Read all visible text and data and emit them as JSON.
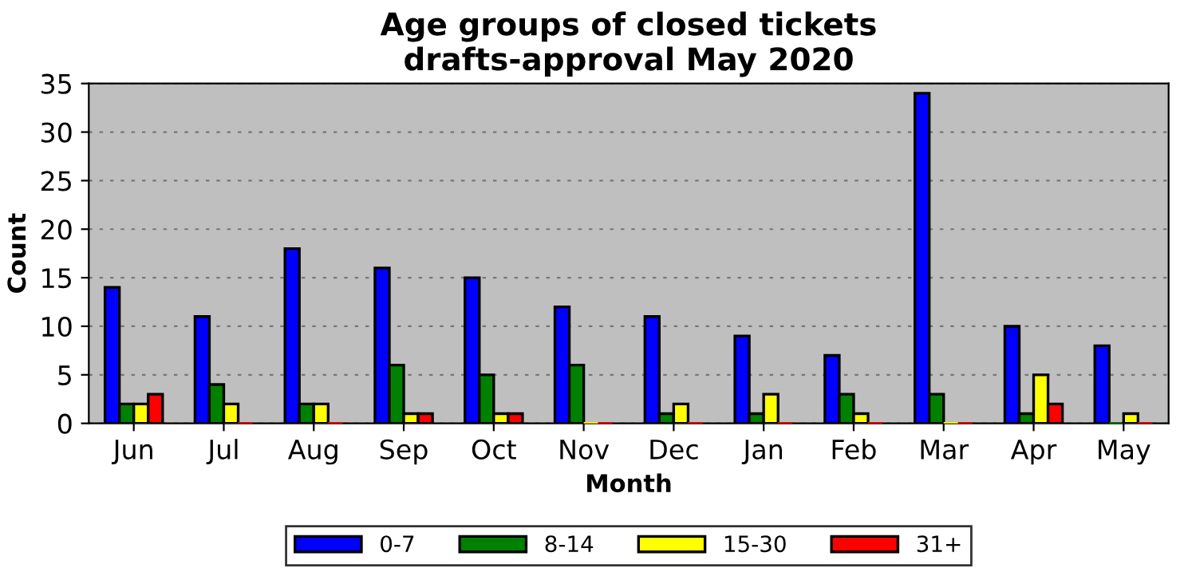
{
  "chart_data": {
    "type": "bar",
    "title": "Age groups of closed tickets\ndrafts-approval May 2020",
    "xlabel": "Month",
    "ylabel": "Count",
    "categories": [
      "Jun",
      "Jul",
      "Aug",
      "Sep",
      "Oct",
      "Nov",
      "Dec",
      "Jan",
      "Feb",
      "Mar",
      "Apr",
      "May"
    ],
    "series": [
      {
        "name": "0-7",
        "color": "#0000ff",
        "values": [
          14,
          11,
          18,
          16,
          15,
          12,
          11,
          9,
          7,
          34,
          10,
          8
        ]
      },
      {
        "name": "8-14",
        "color": "#008000",
        "values": [
          2,
          4,
          2,
          6,
          5,
          6,
          1,
          1,
          3,
          3,
          1,
          0
        ]
      },
      {
        "name": "15-30",
        "color": "#ffff00",
        "values": [
          2,
          2,
          2,
          1,
          1,
          0,
          2,
          3,
          1,
          0,
          5,
          1
        ]
      },
      {
        "name": "31+",
        "color": "#ff0000",
        "values": [
          3,
          0,
          0,
          1,
          1,
          0,
          0,
          0,
          0,
          0,
          2,
          0
        ]
      }
    ],
    "ylim": [
      0,
      35
    ],
    "yticks": [
      0,
      5,
      10,
      15,
      20,
      25,
      30,
      35
    ],
    "grid": "y",
    "legend": "bottom"
  }
}
